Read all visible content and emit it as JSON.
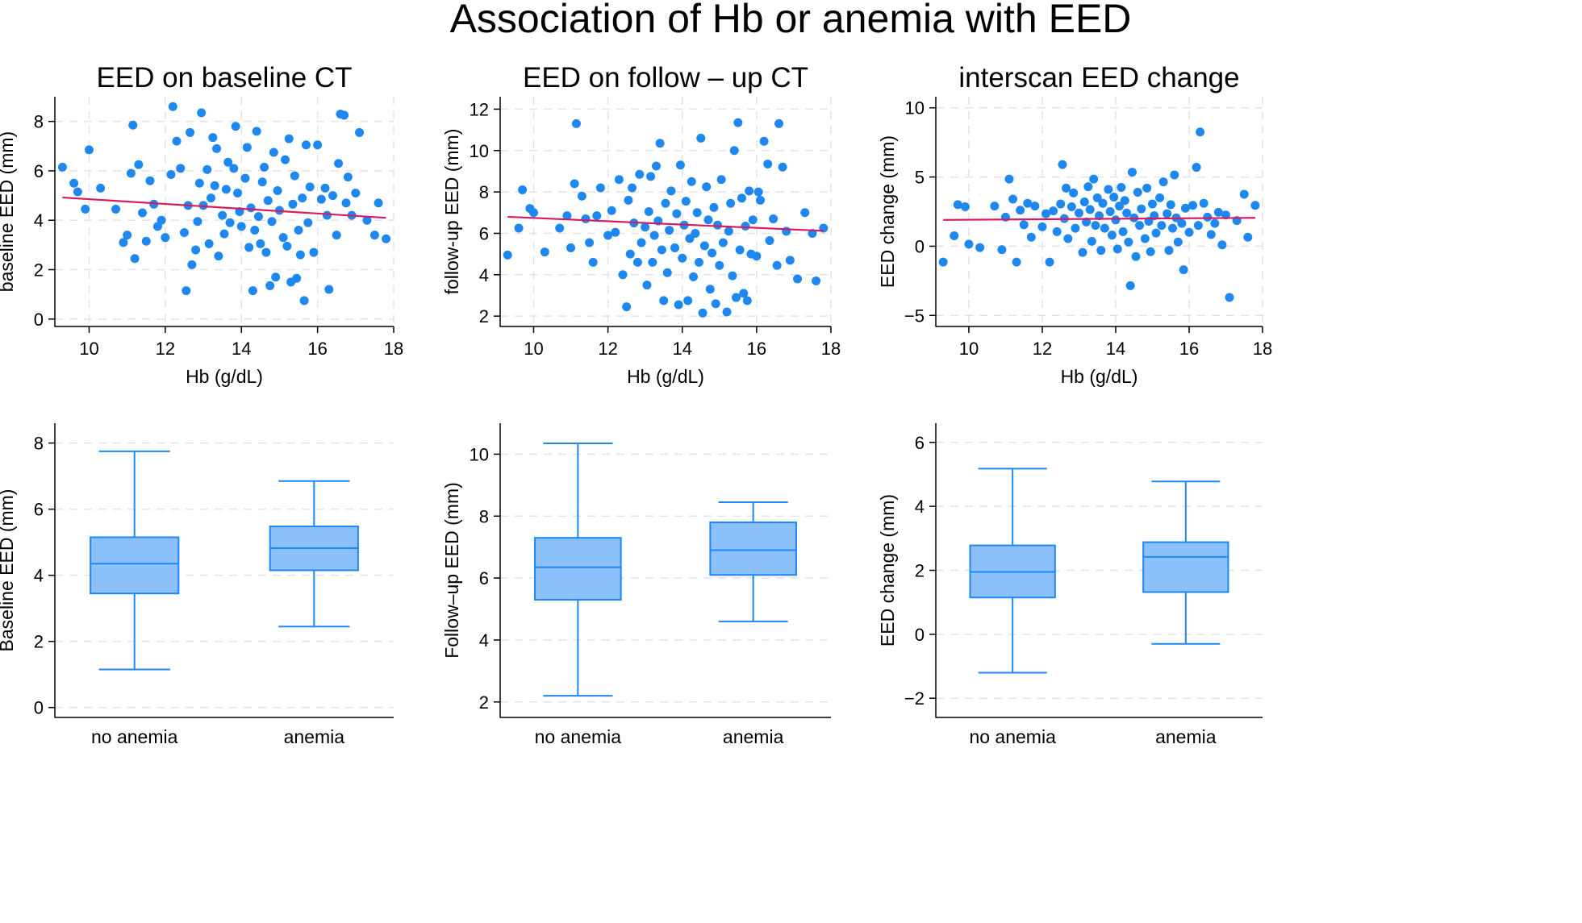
{
  "figure": {
    "title": "Association of Hb or anemia with EED"
  },
  "style": {
    "point_color": "#1E88F0",
    "fit_color": "#D81B60",
    "box_fill": "#8CC0FA",
    "box_stroke": "#1E88F0",
    "grid_color": "#E3E3E3"
  },
  "chart_data": [
    {
      "type": "scatter",
      "title": "EED on baseline CT",
      "xlabel": "Hb (g/dL)",
      "ylabel": "baseline EED (mm)",
      "xlim": [
        9.1,
        18.0
      ],
      "ylim": [
        -0.3,
        9.0
      ],
      "xticks": [
        10,
        12,
        14,
        16,
        18
      ],
      "yticks": [
        0,
        2,
        4,
        6,
        8
      ],
      "grid": true,
      "fit_line": {
        "x": [
          9.3,
          17.8
        ],
        "y": [
          4.92,
          4.1
        ]
      },
      "points": [
        [
          9.3,
          6.15
        ],
        [
          9.6,
          5.5
        ],
        [
          9.7,
          5.15
        ],
        [
          9.9,
          4.45
        ],
        [
          10.0,
          6.85
        ],
        [
          10.3,
          5.3
        ],
        [
          10.7,
          4.45
        ],
        [
          10.9,
          3.1
        ],
        [
          11.0,
          3.4
        ],
        [
          11.1,
          5.9
        ],
        [
          11.15,
          7.85
        ],
        [
          11.2,
          2.45
        ],
        [
          11.3,
          6.25
        ],
        [
          11.4,
          4.3
        ],
        [
          11.5,
          3.15
        ],
        [
          11.6,
          5.6
        ],
        [
          11.7,
          4.65
        ],
        [
          11.8,
          3.75
        ],
        [
          11.9,
          4.0
        ],
        [
          12.0,
          3.3
        ],
        [
          12.15,
          5.85
        ],
        [
          12.2,
          8.6
        ],
        [
          12.3,
          7.2
        ],
        [
          12.4,
          6.1
        ],
        [
          12.5,
          3.5
        ],
        [
          12.55,
          1.15
        ],
        [
          12.6,
          4.6
        ],
        [
          12.65,
          7.55
        ],
        [
          12.7,
          2.2
        ],
        [
          12.8,
          2.8
        ],
        [
          12.85,
          3.95
        ],
        [
          12.9,
          5.5
        ],
        [
          12.95,
          8.35
        ],
        [
          13.0,
          4.6
        ],
        [
          13.1,
          6.05
        ],
        [
          13.15,
          3.05
        ],
        [
          13.2,
          4.9
        ],
        [
          13.25,
          7.35
        ],
        [
          13.3,
          5.4
        ],
        [
          13.35,
          6.9
        ],
        [
          13.4,
          2.55
        ],
        [
          13.5,
          4.2
        ],
        [
          13.55,
          3.45
        ],
        [
          13.6,
          5.25
        ],
        [
          13.65,
          6.35
        ],
        [
          13.7,
          3.9
        ],
        [
          13.8,
          6.1
        ],
        [
          13.85,
          7.8
        ],
        [
          13.9,
          5.1
        ],
        [
          13.95,
          4.35
        ],
        [
          14.0,
          3.75
        ],
        [
          14.1,
          5.7
        ],
        [
          14.15,
          6.95
        ],
        [
          14.2,
          2.9
        ],
        [
          14.25,
          4.5
        ],
        [
          14.3,
          1.15
        ],
        [
          14.35,
          3.6
        ],
        [
          14.4,
          7.6
        ],
        [
          14.45,
          4.15
        ],
        [
          14.5,
          3.05
        ],
        [
          14.55,
          5.55
        ],
        [
          14.6,
          6.15
        ],
        [
          14.65,
          2.7
        ],
        [
          14.7,
          4.8
        ],
        [
          14.75,
          1.35
        ],
        [
          14.8,
          3.95
        ],
        [
          14.85,
          6.75
        ],
        [
          14.9,
          1.7
        ],
        [
          14.95,
          5.2
        ],
        [
          15.0,
          4.4
        ],
        [
          15.1,
          3.3
        ],
        [
          15.15,
          6.45
        ],
        [
          15.2,
          2.95
        ],
        [
          15.25,
          7.3
        ],
        [
          15.3,
          1.5
        ],
        [
          15.35,
          4.65
        ],
        [
          15.4,
          5.8
        ],
        [
          15.45,
          1.65
        ],
        [
          15.5,
          3.6
        ],
        [
          15.55,
          2.6
        ],
        [
          15.6,
          4.9
        ],
        [
          15.65,
          0.75
        ],
        [
          15.7,
          7.05
        ],
        [
          15.75,
          3.9
        ],
        [
          15.8,
          5.35
        ],
        [
          15.9,
          2.7
        ],
        [
          16.0,
          7.05
        ],
        [
          16.1,
          4.85
        ],
        [
          16.2,
          5.3
        ],
        [
          16.25,
          4.2
        ],
        [
          16.3,
          1.2
        ],
        [
          16.4,
          5.0
        ],
        [
          16.5,
          3.4
        ],
        [
          16.55,
          6.3
        ],
        [
          16.6,
          8.3
        ],
        [
          16.7,
          8.25
        ],
        [
          16.75,
          4.7
        ],
        [
          16.8,
          5.75
        ],
        [
          16.9,
          4.2
        ],
        [
          17.0,
          5.1
        ],
        [
          17.1,
          7.55
        ],
        [
          17.3,
          4.0
        ],
        [
          17.5,
          3.4
        ],
        [
          17.6,
          4.7
        ],
        [
          17.8,
          3.25
        ]
      ]
    },
    {
      "type": "scatter",
      "title": "EED on follow – up CT",
      "xlabel": "Hb (g/dL)",
      "ylabel": "follow-up EED (mm)",
      "xlim": [
        9.1,
        18.0
      ],
      "ylim": [
        1.5,
        12.6
      ],
      "xticks": [
        10,
        12,
        14,
        16,
        18
      ],
      "yticks": [
        2,
        4,
        6,
        8,
        10,
        12
      ],
      "grid": true,
      "fit_line": {
        "x": [
          9.3,
          17.8
        ],
        "y": [
          6.8,
          6.12
        ]
      },
      "points": [
        [
          9.3,
          4.95
        ],
        [
          9.6,
          6.25
        ],
        [
          9.7,
          8.1
        ],
        [
          9.9,
          7.2
        ],
        [
          10.0,
          7.0
        ],
        [
          10.3,
          5.1
        ],
        [
          10.7,
          6.25
        ],
        [
          10.9,
          6.85
        ],
        [
          11.0,
          5.3
        ],
        [
          11.1,
          8.4
        ],
        [
          11.15,
          11.3
        ],
        [
          11.3,
          7.8
        ],
        [
          11.4,
          6.7
        ],
        [
          11.5,
          5.55
        ],
        [
          11.6,
          4.6
        ],
        [
          11.7,
          6.85
        ],
        [
          11.8,
          8.2
        ],
        [
          12.0,
          5.9
        ],
        [
          12.1,
          7.1
        ],
        [
          12.2,
          6.05
        ],
        [
          12.3,
          8.6
        ],
        [
          12.4,
          4.0
        ],
        [
          12.5,
          2.45
        ],
        [
          12.55,
          7.6
        ],
        [
          12.6,
          5.0
        ],
        [
          12.65,
          8.2
        ],
        [
          12.7,
          6.5
        ],
        [
          12.8,
          4.6
        ],
        [
          12.85,
          8.85
        ],
        [
          12.9,
          5.55
        ],
        [
          13.0,
          6.3
        ],
        [
          13.05,
          3.5
        ],
        [
          13.1,
          7.05
        ],
        [
          13.15,
          8.75
        ],
        [
          13.2,
          4.6
        ],
        [
          13.25,
          5.9
        ],
        [
          13.3,
          9.25
        ],
        [
          13.35,
          6.6
        ],
        [
          13.4,
          10.35
        ],
        [
          13.45,
          5.2
        ],
        [
          13.5,
          2.75
        ],
        [
          13.55,
          7.45
        ],
        [
          13.6,
          4.1
        ],
        [
          13.65,
          6.15
        ],
        [
          13.7,
          8.05
        ],
        [
          13.8,
          5.3
        ],
        [
          13.85,
          6.95
        ],
        [
          13.9,
          2.55
        ],
        [
          13.95,
          9.3
        ],
        [
          14.0,
          4.8
        ],
        [
          14.05,
          6.4
        ],
        [
          14.1,
          7.55
        ],
        [
          14.15,
          2.75
        ],
        [
          14.2,
          5.75
        ],
        [
          14.25,
          8.5
        ],
        [
          14.3,
          3.9
        ],
        [
          14.35,
          6.0
        ],
        [
          14.4,
          7.0
        ],
        [
          14.45,
          4.6
        ],
        [
          14.5,
          10.6
        ],
        [
          14.55,
          2.15
        ],
        [
          14.6,
          5.4
        ],
        [
          14.65,
          8.25
        ],
        [
          14.7,
          6.65
        ],
        [
          14.75,
          3.3
        ],
        [
          14.8,
          5.05
        ],
        [
          14.85,
          7.25
        ],
        [
          14.9,
          2.6
        ],
        [
          14.95,
          6.4
        ],
        [
          15.0,
          4.45
        ],
        [
          15.05,
          8.6
        ],
        [
          15.1,
          5.55
        ],
        [
          15.2,
          2.2
        ],
        [
          15.25,
          6.1
        ],
        [
          15.3,
          7.45
        ],
        [
          15.35,
          3.95
        ],
        [
          15.4,
          10.0
        ],
        [
          15.45,
          2.9
        ],
        [
          15.5,
          11.35
        ],
        [
          15.55,
          5.2
        ],
        [
          15.6,
          7.7
        ],
        [
          15.65,
          3.1
        ],
        [
          15.7,
          6.35
        ],
        [
          15.75,
          2.75
        ],
        [
          15.8,
          8.05
        ],
        [
          15.85,
          5.0
        ],
        [
          15.9,
          6.65
        ],
        [
          16.0,
          4.9
        ],
        [
          16.05,
          8.0
        ],
        [
          16.1,
          7.6
        ],
        [
          16.2,
          10.45
        ],
        [
          16.3,
          9.35
        ],
        [
          16.35,
          5.65
        ],
        [
          16.45,
          6.7
        ],
        [
          16.55,
          4.45
        ],
        [
          16.6,
          11.3
        ],
        [
          16.7,
          9.2
        ],
        [
          16.8,
          6.1
        ],
        [
          16.9,
          4.7
        ],
        [
          17.1,
          3.8
        ],
        [
          17.3,
          7.0
        ],
        [
          17.5,
          6.0
        ],
        [
          17.6,
          3.7
        ],
        [
          17.8,
          6.25
        ]
      ]
    },
    {
      "type": "scatter",
      "title": "interscan EED change",
      "xlabel": "Hb (g/dL)",
      "ylabel": "EED change (mm)",
      "xlim": [
        9.1,
        18.0
      ],
      "ylim": [
        -5.8,
        10.8
      ],
      "xticks": [
        10,
        12,
        14,
        16,
        18
      ],
      "yticks": [
        -5,
        0,
        5,
        10
      ],
      "grid": true,
      "fit_line": {
        "x": [
          9.3,
          17.8
        ],
        "y": [
          1.9,
          2.05
        ]
      },
      "points": [
        [
          9.3,
          -1.15
        ],
        [
          9.6,
          0.75
        ],
        [
          9.7,
          3.0
        ],
        [
          9.9,
          2.85
        ],
        [
          10.0,
          0.15
        ],
        [
          10.3,
          -0.1
        ],
        [
          10.7,
          2.9
        ],
        [
          10.9,
          -0.25
        ],
        [
          11.0,
          2.1
        ],
        [
          11.1,
          4.85
        ],
        [
          11.2,
          3.4
        ],
        [
          11.3,
          -1.15
        ],
        [
          11.4,
          2.6
        ],
        [
          11.5,
          1.55
        ],
        [
          11.6,
          3.1
        ],
        [
          11.7,
          0.65
        ],
        [
          11.8,
          2.9
        ],
        [
          12.0,
          1.4
        ],
        [
          12.1,
          2.35
        ],
        [
          12.2,
          -1.15
        ],
        [
          12.3,
          2.55
        ],
        [
          12.4,
          1.05
        ],
        [
          12.5,
          3.05
        ],
        [
          12.55,
          5.9
        ],
        [
          12.6,
          2.0
        ],
        [
          12.65,
          4.2
        ],
        [
          12.7,
          0.55
        ],
        [
          12.8,
          2.85
        ],
        [
          12.85,
          3.85
        ],
        [
          12.9,
          1.3
        ],
        [
          13.0,
          2.4
        ],
        [
          13.1,
          -0.45
        ],
        [
          13.15,
          3.2
        ],
        [
          13.2,
          1.75
        ],
        [
          13.25,
          4.3
        ],
        [
          13.3,
          2.65
        ],
        [
          13.35,
          0.35
        ],
        [
          13.4,
          4.85
        ],
        [
          13.45,
          1.5
        ],
        [
          13.5,
          3.5
        ],
        [
          13.55,
          2.2
        ],
        [
          13.6,
          -0.3
        ],
        [
          13.65,
          3.1
        ],
        [
          13.7,
          1.3
        ],
        [
          13.8,
          4.1
        ],
        [
          13.85,
          2.5
        ],
        [
          13.9,
          0.8
        ],
        [
          13.95,
          3.55
        ],
        [
          14.0,
          1.9
        ],
        [
          14.05,
          -0.2
        ],
        [
          14.1,
          2.9
        ],
        [
          14.15,
          4.25
        ],
        [
          14.2,
          1.05
        ],
        [
          14.25,
          3.3
        ],
        [
          14.3,
          2.4
        ],
        [
          14.35,
          0.3
        ],
        [
          14.4,
          -2.85
        ],
        [
          14.45,
          5.35
        ],
        [
          14.5,
          2.05
        ],
        [
          14.55,
          -0.75
        ],
        [
          14.6,
          3.9
        ],
        [
          14.65,
          1.5
        ],
        [
          14.7,
          2.7
        ],
        [
          14.8,
          0.55
        ],
        [
          14.85,
          4.2
        ],
        [
          14.9,
          1.8
        ],
        [
          14.95,
          -0.4
        ],
        [
          15.0,
          3.05
        ],
        [
          15.05,
          2.2
        ],
        [
          15.1,
          0.95
        ],
        [
          15.2,
          3.5
        ],
        [
          15.25,
          1.5
        ],
        [
          15.3,
          4.65
        ],
        [
          15.4,
          2.35
        ],
        [
          15.45,
          -0.3
        ],
        [
          15.5,
          3.0
        ],
        [
          15.55,
          1.3
        ],
        [
          15.6,
          5.15
        ],
        [
          15.65,
          2.05
        ],
        [
          15.7,
          0.3
        ],
        [
          15.8,
          1.65
        ],
        [
          15.85,
          -1.7
        ],
        [
          15.9,
          2.75
        ],
        [
          16.0,
          1.0
        ],
        [
          16.1,
          2.95
        ],
        [
          16.2,
          5.7
        ],
        [
          16.25,
          1.5
        ],
        [
          16.3,
          8.25
        ],
        [
          16.4,
          3.1
        ],
        [
          16.5,
          2.1
        ],
        [
          16.6,
          0.85
        ],
        [
          16.7,
          1.65
        ],
        [
          16.8,
          2.45
        ],
        [
          16.9,
          0.1
        ],
        [
          17.0,
          2.25
        ],
        [
          17.1,
          -3.7
        ],
        [
          17.3,
          1.85
        ],
        [
          17.5,
          3.75
        ],
        [
          17.6,
          0.65
        ],
        [
          17.8,
          2.95
        ]
      ]
    },
    {
      "type": "box",
      "title": "",
      "categories": [
        "no anemia",
        "anemia"
      ],
      "ylabel": "Baseline EED (mm)",
      "ylim": [
        -0.3,
        8.6
      ],
      "yticks": [
        0,
        2,
        4,
        6,
        8
      ],
      "grid": true,
      "boxes": [
        {
          "whisker_low": 1.15,
          "q1": 3.45,
          "median": 4.35,
          "q3": 5.15,
          "whisker_high": 7.75
        },
        {
          "whisker_low": 2.45,
          "q1": 4.15,
          "median": 4.82,
          "q3": 5.48,
          "whisker_high": 6.85
        }
      ]
    },
    {
      "type": "box",
      "title": "",
      "categories": [
        "no anemia",
        "anemia"
      ],
      "ylabel": "Follow–up EED (mm)",
      "ylim": [
        1.5,
        11.0
      ],
      "yticks": [
        2,
        4,
        6,
        8,
        10
      ],
      "grid": true,
      "boxes": [
        {
          "whisker_low": 2.2,
          "q1": 5.3,
          "median": 6.35,
          "q3": 7.3,
          "whisker_high": 10.35
        },
        {
          "whisker_low": 4.6,
          "q1": 6.1,
          "median": 6.9,
          "q3": 7.8,
          "whisker_high": 8.45
        }
      ]
    },
    {
      "type": "box",
      "title": "",
      "categories": [
        "no anemia",
        "anemia"
      ],
      "ylabel": "EED change (mm)",
      "ylim": [
        -2.6,
        6.6
      ],
      "yticks": [
        -2,
        0,
        2,
        4,
        6
      ],
      "grid": true,
      "boxes": [
        {
          "whisker_low": -1.2,
          "q1": 1.15,
          "median": 1.95,
          "q3": 2.78,
          "whisker_high": 5.18
        },
        {
          "whisker_low": -0.3,
          "q1": 1.32,
          "median": 2.42,
          "q3": 2.88,
          "whisker_high": 4.78
        }
      ]
    }
  ]
}
